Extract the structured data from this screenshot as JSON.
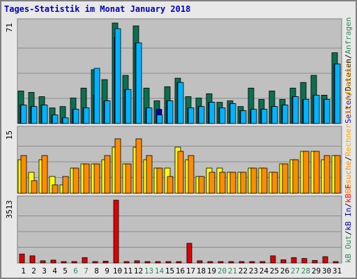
{
  "chart_data": {
    "title": "Tages-Statistik im Monat January 2018",
    "categories": [
      "1",
      "2",
      "3",
      "4",
      "5",
      "6",
      "7",
      "8",
      "9",
      "10",
      "11",
      "12",
      "13",
      "14",
      "15",
      "16",
      "17",
      "18",
      "19",
      "20",
      "21",
      "22",
      "23",
      "24",
      "25",
      "26",
      "27",
      "28",
      "29",
      "30",
      "31"
    ],
    "weekend_days": [
      "6",
      "7",
      "13",
      "14",
      "20",
      "21",
      "27",
      "28"
    ],
    "weekend_color": "#2e8b57",
    "weekday_color": "#0000b8",
    "panels": [
      {
        "type": "bar",
        "ymax_label": "71",
        "ymax": 71,
        "grid": true,
        "series": [
          {
            "name": "Anfragen",
            "label_color": "#2e8b57",
            "color": "#0a7050",
            "values": [
              23,
              22,
              19,
              11,
              12,
              18,
              25,
              38,
              31,
              71,
              34,
              69,
              25,
              16,
              26,
              32,
              19,
              18,
              21,
              15,
              16,
              12,
              25,
              17,
              23,
              17,
              25,
              29,
              34,
              20,
              50
            ]
          },
          {
            "name": "Dateien",
            "label_color": "#000000",
            "color": "#0000b8",
            "values": [
              13,
              12,
              13,
              6,
              4,
              10,
              11,
              20,
              16,
              61,
              24,
              57,
              11,
              10,
              16,
              29,
              11,
              12,
              15,
              11,
              14,
              9,
              10,
              10,
              12,
              13,
              19,
              17,
              20,
              17,
              42
            ]
          },
          {
            "name": "Seiten",
            "label_color": "#0000b8",
            "color": "#00b4ff",
            "values": [
              13,
              12,
              13,
              6,
              4,
              10,
              11,
              39,
              16,
              67,
              24,
              57,
              11,
              6,
              16,
              29,
              11,
              12,
              15,
              11,
              14,
              9,
              10,
              10,
              12,
              13,
              19,
              17,
              20,
              17,
              42
            ]
          }
        ]
      },
      {
        "type": "bar",
        "ymax_label": "15",
        "ymax": 15,
        "grid": true,
        "series": [
          {
            "name": "Rechner (IP-Adressen)",
            "label_color": "#ffa500",
            "color": "#ffff00",
            "values": [
              8,
              5,
              8,
              4,
              2,
              6,
              7,
              7,
              8,
              11,
              7,
              11,
              8,
              6,
              6,
              11,
              8,
              4,
              6,
              6,
              5,
              5,
              6,
              6,
              5,
              7,
              8,
              10,
              10,
              8,
              9
            ]
          },
          {
            "name": "Besuche",
            "label_color": "#ff8c00",
            "color": "#ff8c00",
            "values": [
              9,
              3,
              9,
              2,
              4,
              6,
              7,
              7,
              9,
              13,
              7,
              13,
              9,
              6,
              4,
              10,
              9,
              4,
              5,
              5,
              5,
              5,
              6,
              6,
              5,
              7,
              8,
              10,
              10,
              9,
              9
            ]
          }
        ]
      },
      {
        "type": "bar",
        "ymax_label": "3513",
        "ymax": 3513,
        "grid": true,
        "series": [
          {
            "name": "kB F",
            "label_color": "#ff0000",
            "color": "#e00000",
            "values": [
              500,
              400,
              120,
              160,
              40,
              40,
              300,
              70,
              100,
              3513,
              70,
              120,
              40,
              40,
              60,
              40,
              1100,
              120,
              80,
              80,
              80,
              60,
              80,
              40,
              400,
              180,
              300,
              250,
              140,
              350,
              40
            ]
          },
          {
            "name": "kB In",
            "label_color": "#0000b8",
            "color": "#0000b8",
            "values": [
              0,
              0,
              0,
              0,
              0,
              0,
              0,
              0,
              0,
              0,
              0,
              0,
              0,
              0,
              0,
              0,
              0,
              0,
              0,
              0,
              0,
              0,
              0,
              0,
              0,
              0,
              0,
              0,
              0,
              0,
              0
            ]
          },
          {
            "name": "kB Out",
            "label_color": "#2e8b57",
            "color": "#2e8b57",
            "values": [
              0,
              0,
              0,
              0,
              0,
              0,
              0,
              0,
              0,
              0,
              0,
              0,
              0,
              0,
              0,
              0,
              0,
              0,
              0,
              0,
              0,
              0,
              0,
              0,
              0,
              0,
              0,
              0,
              0,
              0,
              0
            ]
          }
        ]
      }
    ]
  }
}
